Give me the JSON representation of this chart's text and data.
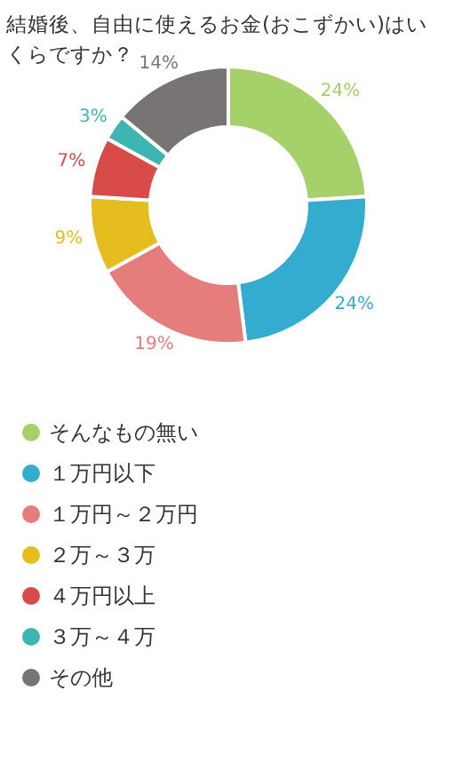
{
  "chart_data": {
    "type": "donut",
    "title": "結婚後、自由に使えるお金(おこずかい)はいくらですか？",
    "categories": [
      "そんなもの無い",
      "１万円以下",
      "１万円～２万円",
      "２万～３万",
      "４万円以上",
      "３万～４万",
      "その他"
    ],
    "values": [
      24,
      24,
      19,
      9,
      7,
      3,
      14
    ],
    "colors": [
      "#a5d16b",
      "#34acd0",
      "#e57d7d",
      "#e6bd1f",
      "#d94b48",
      "#3db5b3",
      "#797474"
    ],
    "value_labels": [
      "24%",
      "24%",
      "19%",
      "9%",
      "7%",
      "3%",
      "14%"
    ],
    "legend": "bottom"
  }
}
